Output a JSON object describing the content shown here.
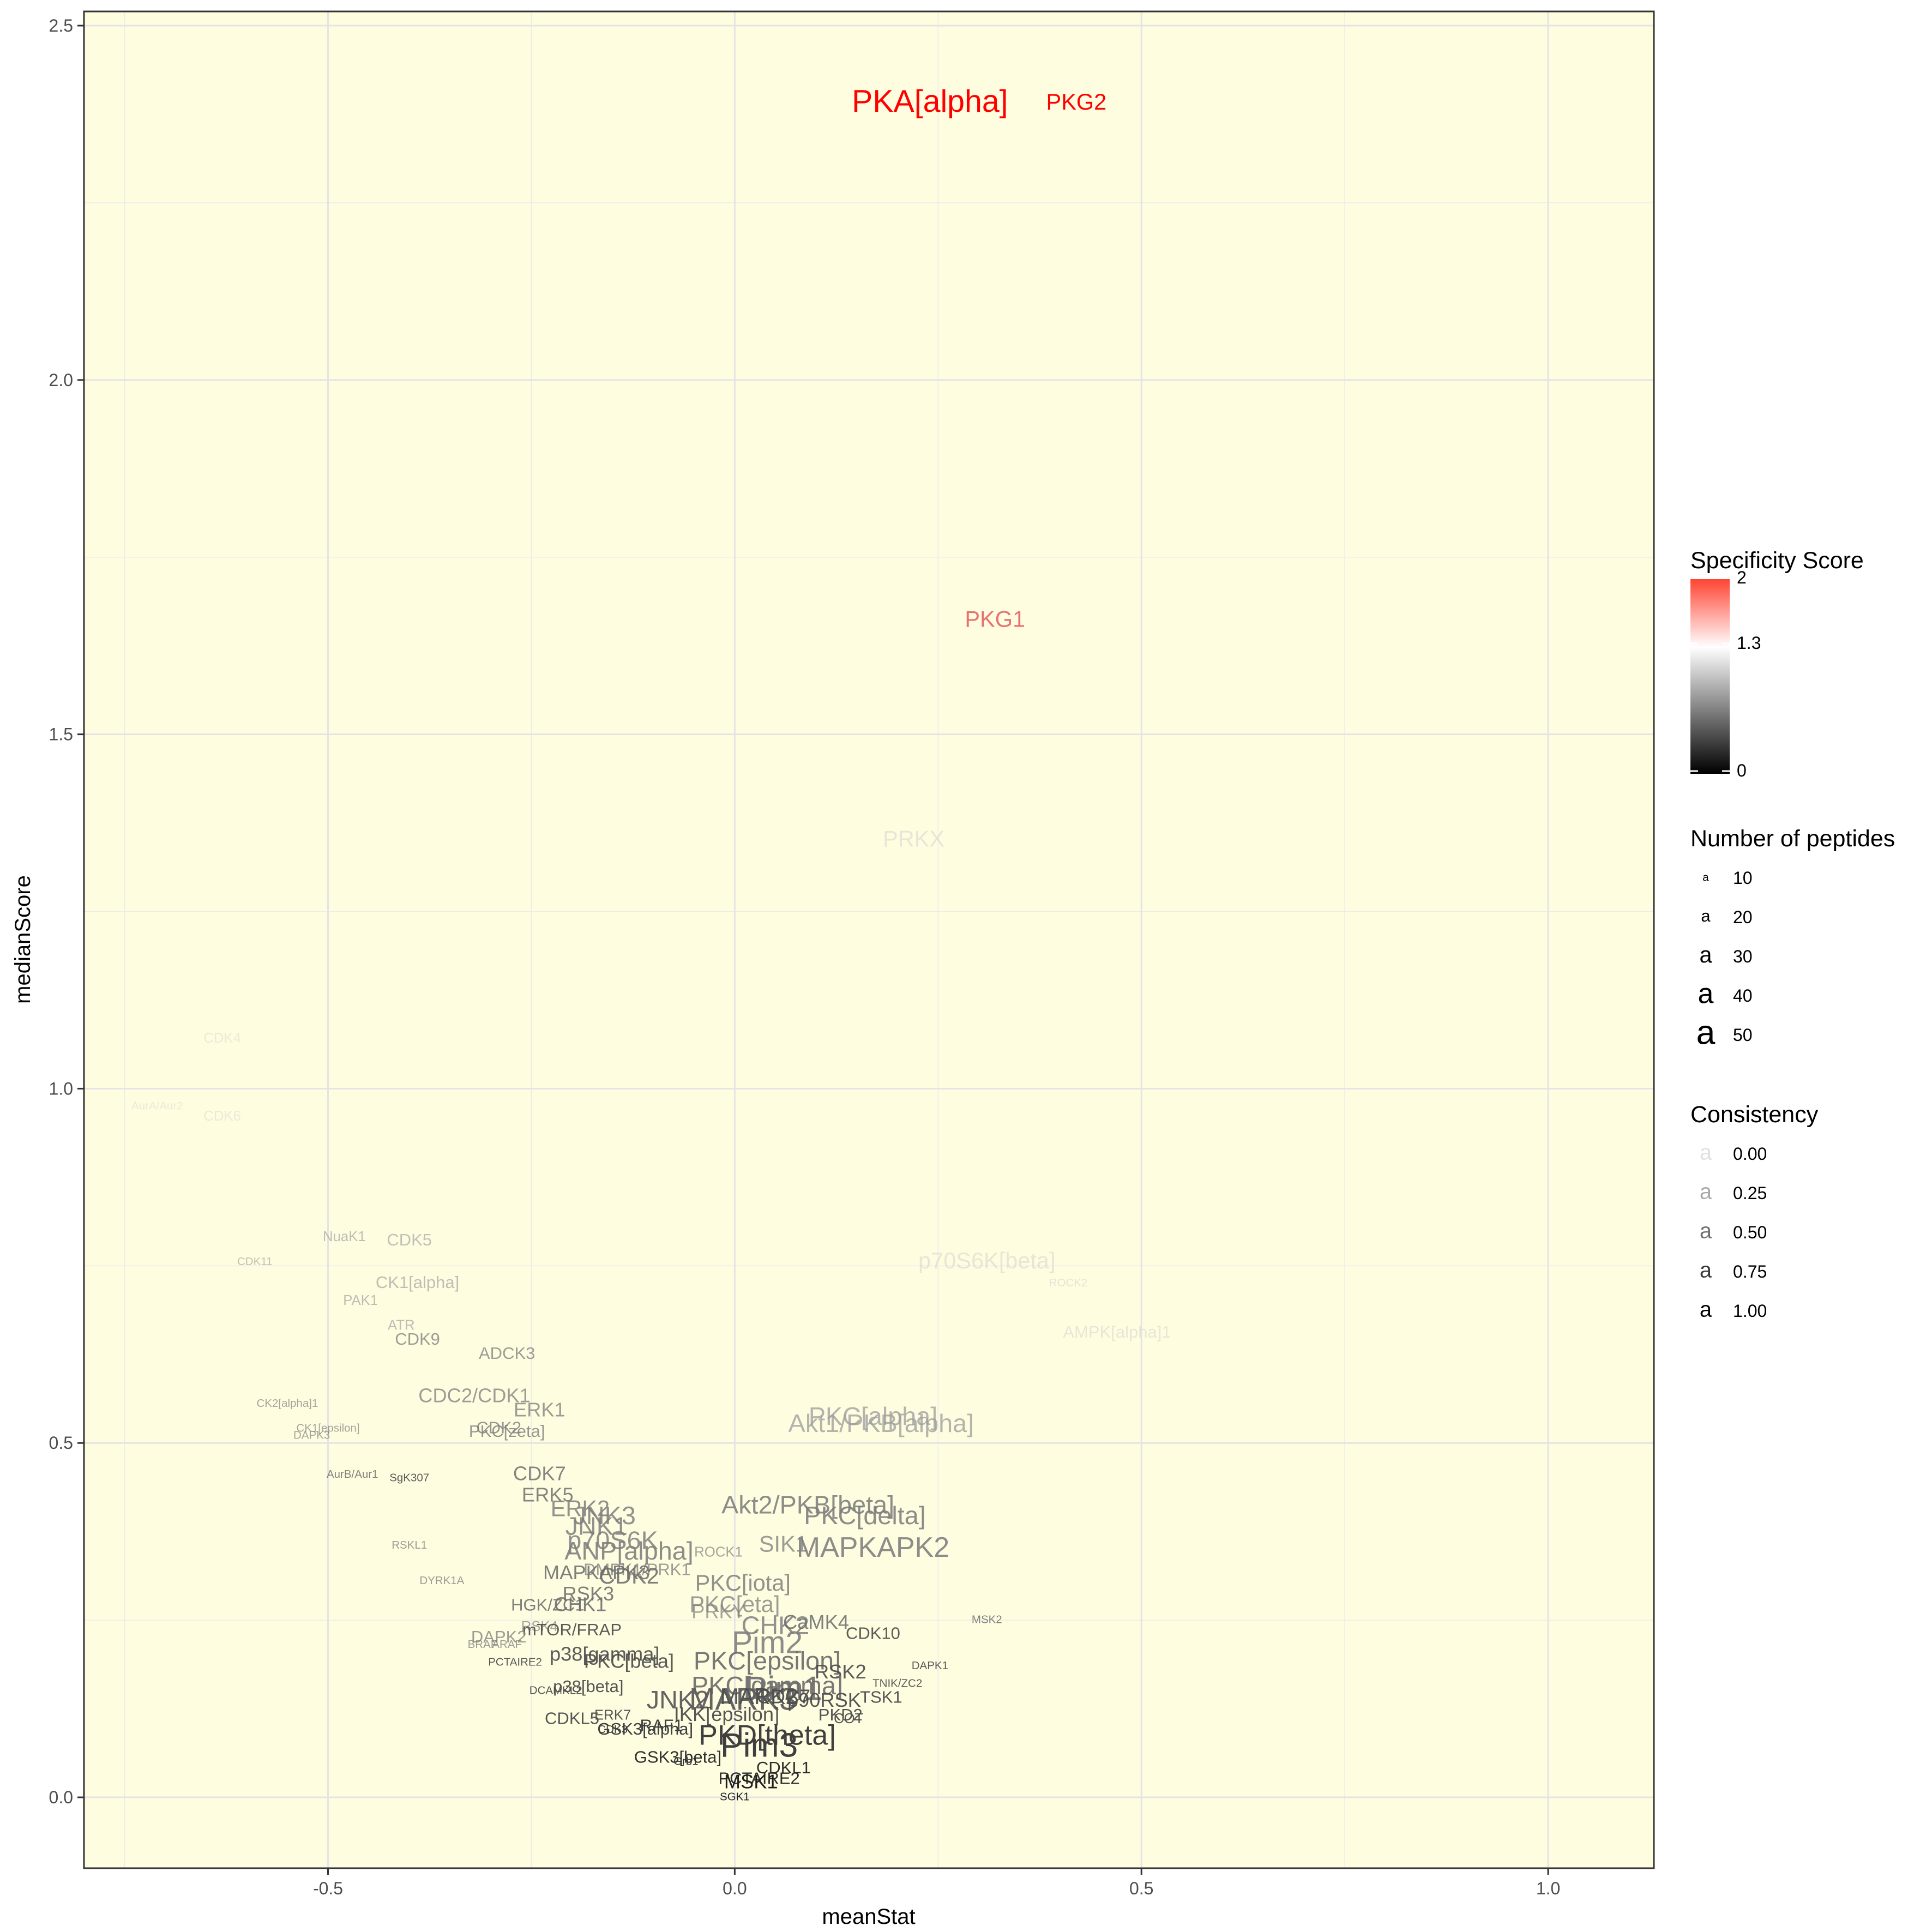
{
  "chart_data": {
    "type": "scatter",
    "title": "",
    "xlabel": "meanStat",
    "ylabel": "medianScore",
    "xlim": [
      -0.8,
      1.13
    ],
    "ylim": [
      -0.1,
      2.52
    ],
    "xticks": [
      -0.5,
      0.0,
      0.5,
      1.0
    ],
    "xtick_labels": [
      "-0.5",
      "0.0",
      "0.5",
      "1.0"
    ],
    "yticks": [
      0.0,
      0.5,
      1.0,
      1.5,
      2.0,
      2.5
    ],
    "ytick_labels": [
      "0.0",
      "0.5",
      "1.0",
      "1.5",
      "2.0",
      "2.5"
    ],
    "grid": true,
    "background": "#fffde0",
    "points": [
      {
        "label": "PKA[alpha]",
        "x": 0.24,
        "y": 2.39,
        "n": 45,
        "spec": 2.0,
        "cons": 1.0
      },
      {
        "label": "PKG2",
        "x": 0.42,
        "y": 2.39,
        "n": 30,
        "spec": 2.0,
        "cons": 1.0
      },
      {
        "label": "PKG1",
        "x": 0.32,
        "y": 1.66,
        "n": 30,
        "spec": 1.65,
        "cons": 0.9
      },
      {
        "label": "PRKX",
        "x": 0.22,
        "y": 1.35,
        "n": 30,
        "spec": 1.3,
        "cons": 0.3
      },
      {
        "label": "CDK4",
        "x": -0.63,
        "y": 1.07,
        "n": 15,
        "spec": 1.3,
        "cons": 0.2
      },
      {
        "label": "AurA/Aur2",
        "x": -0.71,
        "y": 0.975,
        "n": 10,
        "spec": 1.3,
        "cons": 0.2
      },
      {
        "label": "CDK6",
        "x": -0.63,
        "y": 0.96,
        "n": 15,
        "spec": 1.3,
        "cons": 0.2
      },
      {
        "label": "NuaK1",
        "x": -0.48,
        "y": 0.79,
        "n": 15,
        "spec": 1.0,
        "cons": 0.55
      },
      {
        "label": "CDK5",
        "x": -0.4,
        "y": 0.785,
        "n": 20,
        "spec": 1.0,
        "cons": 0.5
      },
      {
        "label": "CDK11",
        "x": -0.59,
        "y": 0.755,
        "n": 10,
        "spec": 1.0,
        "cons": 0.5
      },
      {
        "label": "p70S6K[beta]",
        "x": 0.31,
        "y": 0.755,
        "n": 30,
        "spec": 1.3,
        "cons": 0.3
      },
      {
        "label": "ROCK2",
        "x": 0.41,
        "y": 0.725,
        "n": 10,
        "spec": 1.3,
        "cons": 0.35
      },
      {
        "label": "CK1[alpha]",
        "x": -0.39,
        "y": 0.725,
        "n": 20,
        "spec": 1.0,
        "cons": 0.55
      },
      {
        "label": "PAK1",
        "x": -0.46,
        "y": 0.7,
        "n": 15,
        "spec": 1.0,
        "cons": 0.55
      },
      {
        "label": "ATR",
        "x": -0.41,
        "y": 0.665,
        "n": 15,
        "spec": 1.0,
        "cons": 0.55
      },
      {
        "label": "AMPK[alpha]1",
        "x": 0.47,
        "y": 0.655,
        "n": 20,
        "spec": 1.3,
        "cons": 0.3
      },
      {
        "label": "CDK9",
        "x": -0.39,
        "y": 0.645,
        "n": 20,
        "spec": 0.8,
        "cons": 0.7
      },
      {
        "label": "ADCK3",
        "x": -0.28,
        "y": 0.625,
        "n": 20,
        "spec": 0.8,
        "cons": 0.7
      },
      {
        "label": "CDC2/CDK1",
        "x": -0.32,
        "y": 0.565,
        "n": 25,
        "spec": 0.8,
        "cons": 0.7
      },
      {
        "label": "CK2[alpha]1",
        "x": -0.55,
        "y": 0.555,
        "n": 10,
        "spec": 0.8,
        "cons": 0.6
      },
      {
        "label": "ERK1",
        "x": -0.24,
        "y": 0.545,
        "n": 25,
        "spec": 0.8,
        "cons": 0.7
      },
      {
        "label": "PKC[alpha]",
        "x": 0.17,
        "y": 0.535,
        "n": 35,
        "spec": 1.0,
        "cons": 0.7
      },
      {
        "label": "Akt1/PKB[alpha]",
        "x": 0.18,
        "y": 0.525,
        "n": 35,
        "spec": 1.0,
        "cons": 0.7
      },
      {
        "label": "CK1[epsilon]",
        "x": -0.5,
        "y": 0.52,
        "n": 10,
        "spec": 0.8,
        "cons": 0.6
      },
      {
        "label": "PKC[zeta]",
        "x": -0.28,
        "y": 0.515,
        "n": 20,
        "spec": 0.8,
        "cons": 0.75
      },
      {
        "label": "CDK2",
        "x": -0.29,
        "y": 0.52,
        "n": 20,
        "spec": 0.8,
        "cons": 0.75
      },
      {
        "label": "DAPK3",
        "x": -0.52,
        "y": 0.51,
        "n": 10,
        "spec": 0.8,
        "cons": 0.6
      },
      {
        "label": "CDK7",
        "x": -0.24,
        "y": 0.455,
        "n": 25,
        "spec": 0.7,
        "cons": 0.8
      },
      {
        "label": "AurB/Aur1",
        "x": -0.47,
        "y": 0.455,
        "n": 10,
        "spec": 0.7,
        "cons": 0.8
      },
      {
        "label": "SgK307",
        "x": -0.4,
        "y": 0.45,
        "n": 10,
        "spec": 0.5,
        "cons": 0.9
      },
      {
        "label": "ERK5",
        "x": -0.23,
        "y": 0.425,
        "n": 25,
        "spec": 0.7,
        "cons": 0.8
      },
      {
        "label": "Akt2/PKB[beta]",
        "x": 0.09,
        "y": 0.41,
        "n": 35,
        "spec": 0.8,
        "cons": 0.85
      },
      {
        "label": "ERK2",
        "x": -0.19,
        "y": 0.405,
        "n": 30,
        "spec": 0.8,
        "cons": 0.8
      },
      {
        "label": "PKC[delta]",
        "x": 0.16,
        "y": 0.395,
        "n": 35,
        "spec": 0.8,
        "cons": 0.85
      },
      {
        "label": "JNK3",
        "x": -0.16,
        "y": 0.395,
        "n": 35,
        "spec": 0.8,
        "cons": 0.8
      },
      {
        "label": "JNK1",
        "x": -0.17,
        "y": 0.38,
        "n": 35,
        "spec": 0.8,
        "cons": 0.8
      },
      {
        "label": "p70S6K",
        "x": -0.15,
        "y": 0.36,
        "n": 35,
        "spec": 0.8,
        "cons": 0.8
      },
      {
        "label": "RSKL1",
        "x": -0.4,
        "y": 0.355,
        "n": 10,
        "spec": 0.8,
        "cons": 0.7
      },
      {
        "label": "MAPKAPK2",
        "x": 0.17,
        "y": 0.35,
        "n": 40,
        "spec": 0.8,
        "cons": 0.85
      },
      {
        "label": "SIK1",
        "x": 0.06,
        "y": 0.355,
        "n": 30,
        "spec": 0.8,
        "cons": 0.7
      },
      {
        "label": "ANP[alpha]",
        "x": -0.13,
        "y": 0.345,
        "n": 35,
        "spec": 0.8,
        "cons": 0.85
      },
      {
        "label": "ROCK1",
        "x": -0.02,
        "y": 0.345,
        "n": 15,
        "spec": 0.8,
        "cons": 0.6
      },
      {
        "label": "DMPK1/PRK1",
        "x": -0.12,
        "y": 0.32,
        "n": 20,
        "spec": 0.8,
        "cons": 0.7
      },
      {
        "label": "DYRK1A",
        "x": -0.36,
        "y": 0.305,
        "n": 10,
        "spec": 0.8,
        "cons": 0.7
      },
      {
        "label": "MAPKAPK3",
        "x": -0.17,
        "y": 0.315,
        "n": 25,
        "spec": 0.7,
        "cons": 0.85
      },
      {
        "label": "CDK2b",
        "x": -0.13,
        "y": 0.31,
        "n": 30,
        "spec": 0.7,
        "cons": 0.85
      },
      {
        "label": "PKC[iota]",
        "x": 0.01,
        "y": 0.3,
        "n": 30,
        "spec": 0.8,
        "cons": 0.8
      },
      {
        "label": "RSK3",
        "x": -0.18,
        "y": 0.285,
        "n": 25,
        "spec": 0.7,
        "cons": 0.85
      },
      {
        "label": "PKC[eta]",
        "x": 0.0,
        "y": 0.27,
        "n": 30,
        "spec": 0.8,
        "cons": 0.7
      },
      {
        "label": "CHK1",
        "x": -0.19,
        "y": 0.27,
        "n": 25,
        "spec": 0.7,
        "cons": 0.85
      },
      {
        "label": "HGK/ZC1",
        "x": -0.23,
        "y": 0.27,
        "n": 20,
        "spec": 0.7,
        "cons": 0.85
      },
      {
        "label": "PRKY",
        "x": -0.02,
        "y": 0.26,
        "n": 25,
        "spec": 0.8,
        "cons": 0.6
      },
      {
        "label": "CHK2",
        "x": 0.05,
        "y": 0.24,
        "n": 35,
        "spec": 0.8,
        "cons": 0.8
      },
      {
        "label": "CaMK4",
        "x": 0.1,
        "y": 0.245,
        "n": 25,
        "spec": 0.7,
        "cons": 0.85
      },
      {
        "label": "MSK2",
        "x": 0.31,
        "y": 0.25,
        "n": 10,
        "spec": 0.7,
        "cons": 0.85
      },
      {
        "label": "RSK4",
        "x": -0.24,
        "y": 0.24,
        "n": 15,
        "spec": 0.8,
        "cons": 0.6
      },
      {
        "label": "mTOR/FRAP",
        "x": -0.2,
        "y": 0.235,
        "n": 20,
        "spec": 0.5,
        "cons": 0.9
      },
      {
        "label": "CDK10",
        "x": 0.17,
        "y": 0.23,
        "n": 20,
        "spec": 0.5,
        "cons": 0.9
      },
      {
        "label": "DAPK2",
        "x": -0.29,
        "y": 0.225,
        "n": 20,
        "spec": 0.8,
        "cons": 0.7
      },
      {
        "label": "Pim2",
        "x": 0.04,
        "y": 0.215,
        "n": 45,
        "spec": 0.8,
        "cons": 0.85
      },
      {
        "label": "BRAF",
        "x": -0.31,
        "y": 0.215,
        "n": 10,
        "spec": 0.8,
        "cons": 0.7
      },
      {
        "label": "ARAF",
        "x": -0.28,
        "y": 0.215,
        "n": 10,
        "spec": 0.8,
        "cons": 0.7
      },
      {
        "label": "p38[gamma]",
        "x": -0.16,
        "y": 0.2,
        "n": 25,
        "spec": 0.5,
        "cons": 0.9
      },
      {
        "label": "PKC[epsilon]",
        "x": 0.04,
        "y": 0.19,
        "n": 35,
        "spec": 0.7,
        "cons": 0.9
      },
      {
        "label": "PKC[beta]",
        "x": -0.13,
        "y": 0.19,
        "n": 25,
        "spec": 0.5,
        "cons": 0.9
      },
      {
        "label": "PCTAIRE2",
        "x": -0.27,
        "y": 0.19,
        "n": 10,
        "spec": 0.5,
        "cons": 0.9
      },
      {
        "label": "DAPK1",
        "x": 0.24,
        "y": 0.185,
        "n": 10,
        "spec": 0.5,
        "cons": 0.9
      },
      {
        "label": "RSK2",
        "x": 0.13,
        "y": 0.175,
        "n": 25,
        "spec": 0.5,
        "cons": 0.9
      },
      {
        "label": "TNIK/ZC2",
        "x": 0.2,
        "y": 0.16,
        "n": 10,
        "spec": 0.5,
        "cons": 0.9
      },
      {
        "label": "PKC[gamma]",
        "x": 0.04,
        "y": 0.155,
        "n": 35,
        "spec": 0.7,
        "cons": 0.9
      },
      {
        "label": "Pim1",
        "x": 0.06,
        "y": 0.15,
        "n": 50,
        "spec": 0.7,
        "cons": 0.9
      },
      {
        "label": "p38[beta]",
        "x": -0.18,
        "y": 0.155,
        "n": 20,
        "spec": 0.5,
        "cons": 0.95
      },
      {
        "label": "DCAMKL2",
        "x": -0.22,
        "y": 0.15,
        "n": 10,
        "spec": 0.5,
        "cons": 0.95
      },
      {
        "label": "TSK1",
        "x": 0.18,
        "y": 0.14,
        "n": 20,
        "spec": 0.5,
        "cons": 0.95
      },
      {
        "label": "MARK3",
        "x": 0.01,
        "y": 0.135,
        "n": 45,
        "spec": 0.6,
        "cons": 0.95
      },
      {
        "label": "JNK2",
        "x": -0.07,
        "y": 0.135,
        "n": 35,
        "spec": 0.6,
        "cons": 0.95
      },
      {
        "label": "p90RSK",
        "x": 0.11,
        "y": 0.135,
        "n": 25,
        "spec": 0.5,
        "cons": 0.95
      },
      {
        "label": "CDC7",
        "x": 0.06,
        "y": 0.14,
        "n": 25,
        "spec": 0.5,
        "cons": 0.95
      },
      {
        "label": "MARK2",
        "x": 0.03,
        "y": 0.14,
        "n": 30,
        "spec": 0.5,
        "cons": 0.95
      },
      {
        "label": "IKK[epsilon]",
        "x": -0.01,
        "y": 0.115,
        "n": 25,
        "spec": 0.5,
        "cons": 0.95
      },
      {
        "label": "PKD2",
        "x": 0.13,
        "y": 0.115,
        "n": 20,
        "spec": 0.5,
        "cons": 0.95
      },
      {
        "label": "COT",
        "x": 0.14,
        "y": 0.11,
        "n": 15,
        "spec": 0.5,
        "cons": 0.95
      },
      {
        "label": "ERK7",
        "x": -0.15,
        "y": 0.115,
        "n": 15,
        "spec": 0.5,
        "cons": 0.95
      },
      {
        "label": "CDKL5",
        "x": -0.2,
        "y": 0.11,
        "n": 20,
        "spec": 0.5,
        "cons": 0.95
      },
      {
        "label": "RAF1",
        "x": -0.09,
        "y": 0.1,
        "n": 20,
        "spec": 0.4,
        "cons": 1.0
      },
      {
        "label": "GSK3[alpha]",
        "x": -0.11,
        "y": 0.095,
        "n": 20,
        "spec": 0.4,
        "cons": 1.0
      },
      {
        "label": "CDK3",
        "x": -0.15,
        "y": 0.095,
        "n": 10,
        "spec": 0.4,
        "cons": 1.0
      },
      {
        "label": "PKD[theta]",
        "x": 0.04,
        "y": 0.085,
        "n": 40,
        "spec": 0.4,
        "cons": 1.0
      },
      {
        "label": "Pim3",
        "x": 0.03,
        "y": 0.07,
        "n": 50,
        "spec": 0.4,
        "cons": 1.0
      },
      {
        "label": "GSK3[beta]",
        "x": -0.07,
        "y": 0.055,
        "n": 20,
        "spec": 0.3,
        "cons": 1.0
      },
      {
        "label": "Grb1",
        "x": -0.06,
        "y": 0.05,
        "n": 10,
        "spec": 0.3,
        "cons": 1.0
      },
      {
        "label": "CDKL1",
        "x": 0.06,
        "y": 0.04,
        "n": 20,
        "spec": 0.3,
        "cons": 1.0
      },
      {
        "label": "PCTAIRE2b",
        "x": 0.03,
        "y": 0.025,
        "n": 20,
        "spec": 0.3,
        "cons": 1.0
      },
      {
        "label": "MSK1",
        "x": 0.02,
        "y": 0.02,
        "n": 25,
        "spec": 0.2,
        "cons": 1.0
      },
      {
        "label": "SGK1",
        "x": 0.0,
        "y": 0.0,
        "n": 10,
        "spec": 0.2,
        "cons": 1.0
      }
    ],
    "display_labels": {
      "CDK2b": "CDK2",
      "PCTAIRE2b": "PCTAIRE2"
    },
    "color_scale": {
      "low": "#000000",
      "mid": "#ffffff",
      "high": "#ff0000",
      "low_value": 0,
      "mid_value": 1.3,
      "high_value": 2
    },
    "legend": {
      "placement": "right",
      "specificity": {
        "title": "Specificity Score",
        "labels": [
          "2",
          "1.3",
          "0"
        ]
      },
      "peptides": {
        "title": "Number of peptides",
        "symbol": "a",
        "values": [
          "10",
          "20",
          "30",
          "40",
          "50"
        ]
      },
      "consistency": {
        "title": "Consistency",
        "symbol": "a",
        "values": [
          "0.00",
          "0.25",
          "0.50",
          "0.75",
          "1.00"
        ]
      }
    }
  }
}
